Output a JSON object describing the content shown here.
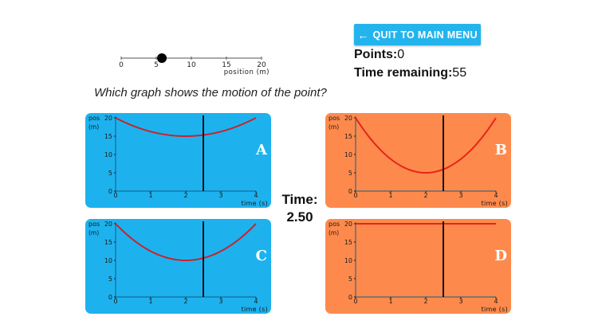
{
  "slider": {
    "ticks": [
      "0",
      "5",
      "10",
      "15",
      "20"
    ],
    "axis_label": "position (m)",
    "point_value": 5.8
  },
  "quit_button": {
    "icon": "arrow-left-icon",
    "label": "QUIT TO MAIN MENU",
    "color": "#23b4ee"
  },
  "points": {
    "label": "Points:",
    "value": "0"
  },
  "time_remaining": {
    "label": "Time remaining:",
    "value": "55"
  },
  "question": "Which graph shows the motion of the point?",
  "time_display": {
    "label": "Time:",
    "value": "2.50"
  },
  "colors": {
    "blue_card": "#1db2ee",
    "orange_card": "#fd8a4c",
    "curve": "#e0201c",
    "cursor": "#111111"
  },
  "graphs": [
    {
      "letter": "A",
      "color": "blue",
      "y_label_1": "pos",
      "y_label_2": "(m)",
      "x_label": "time (s)",
      "y_ticks": [
        "0",
        "5",
        "10",
        "15",
        "20"
      ],
      "x_ticks": [
        "0",
        "1",
        "2",
        "3",
        "4"
      ],
      "curve": "x(t)=20-5t+1.25t^2 (min 15 at t=2)"
    },
    {
      "letter": "B",
      "color": "orange",
      "y_label_1": "pos",
      "y_label_2": "(m)",
      "x_label": "time (s)",
      "y_ticks": [
        "0",
        "5",
        "10",
        "15",
        "20"
      ],
      "x_ticks": [
        "0",
        "1",
        "2",
        "3",
        "4"
      ],
      "curve": "x(t)=20-15t+3.75t^2 (min 5 at t=2)"
    },
    {
      "letter": "C",
      "color": "blue",
      "y_label_1": "pos",
      "y_label_2": "(m)",
      "x_label": "time (s)",
      "y_ticks": [
        "0",
        "5",
        "10",
        "15",
        "20"
      ],
      "x_ticks": [
        "0",
        "1",
        "2",
        "3",
        "4"
      ],
      "curve": "x(t)=20-10t+2.5t^2 (min 10 at t=2)"
    },
    {
      "letter": "D",
      "color": "orange",
      "y_label_1": "pos",
      "y_label_2": "(m)",
      "x_label": "time (s)",
      "y_ticks": [
        "0",
        "5",
        "10",
        "15",
        "20"
      ],
      "x_ticks": [
        "0",
        "1",
        "2",
        "3",
        "4"
      ],
      "curve": "x(t)=20 (constant)"
    }
  ],
  "chart_data": [
    {
      "type": "line",
      "title": "A",
      "xlabel": "time (s)",
      "ylabel": "pos (m)",
      "xlim": [
        0,
        4
      ],
      "ylim": [
        0,
        20
      ],
      "x": [
        0,
        0.5,
        1,
        1.5,
        2,
        2.5,
        3,
        3.5,
        4
      ],
      "values": [
        20,
        17.8,
        16.3,
        15.3,
        15,
        15.3,
        16.3,
        17.8,
        20
      ],
      "cursor_x": 2.5
    },
    {
      "type": "line",
      "title": "B",
      "xlabel": "time (s)",
      "ylabel": "pos (m)",
      "xlim": [
        0,
        4
      ],
      "ylim": [
        0,
        20
      ],
      "x": [
        0,
        0.5,
        1,
        1.5,
        2,
        2.5,
        3,
        3.5,
        4
      ],
      "values": [
        20,
        13.4,
        8.8,
        5.9,
        5,
        5.9,
        8.8,
        13.4,
        20
      ],
      "cursor_x": 2.5
    },
    {
      "type": "line",
      "title": "C",
      "xlabel": "time (s)",
      "ylabel": "pos (m)",
      "xlim": [
        0,
        4
      ],
      "ylim": [
        0,
        20
      ],
      "x": [
        0,
        0.5,
        1,
        1.5,
        2,
        2.5,
        3,
        3.5,
        4
      ],
      "values": [
        20,
        15.6,
        12.5,
        10.6,
        10,
        10.6,
        12.5,
        15.6,
        20
      ],
      "cursor_x": 2.5
    },
    {
      "type": "line",
      "title": "D",
      "xlabel": "time (s)",
      "ylabel": "pos (m)",
      "xlim": [
        0,
        4
      ],
      "ylim": [
        0,
        20
      ],
      "x": [
        0,
        1,
        2,
        3,
        4
      ],
      "values": [
        20,
        20,
        20,
        20,
        20
      ],
      "cursor_x": 2.5
    }
  ]
}
